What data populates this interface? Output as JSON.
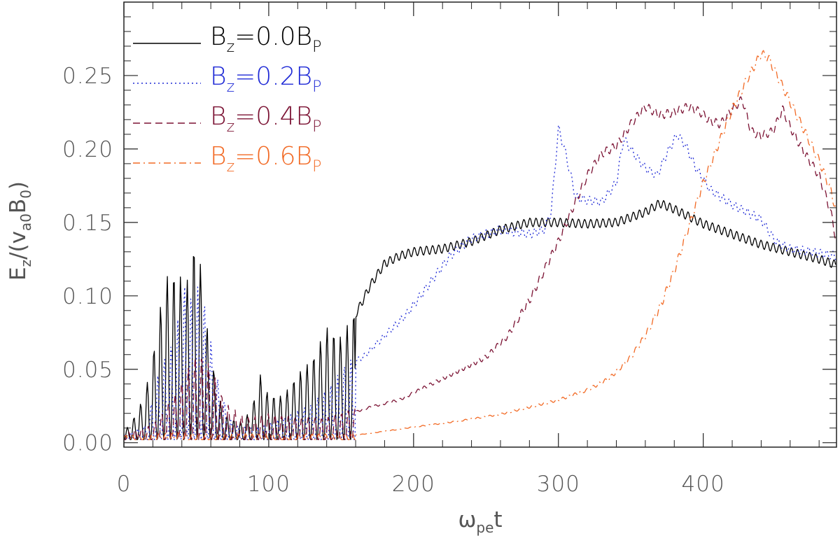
{
  "chart_data": {
    "type": "line",
    "xlabel": "ω_pe t",
    "ylabel": "E_z/(v_a0 B_0)",
    "xlim": [
      0,
      492
    ],
    "ylim": [
      -0.003,
      0.3
    ],
    "x_ticks": [
      0,
      100,
      200,
      300,
      400
    ],
    "x_tick_labels": [
      "0",
      "100",
      "200",
      "300",
      "400"
    ],
    "y_ticks": [
      0.0,
      0.05,
      0.1,
      0.15,
      0.2,
      0.25
    ],
    "y_tick_labels": [
      "0.00",
      "0.05",
      "0.10",
      "0.15",
      "0.20",
      "0.25"
    ],
    "legend_position": "top-left",
    "series": [
      {
        "name": "B_z=0.0B_P",
        "legend_main": "B",
        "legend_sub": "z",
        "legend_mid": "=0.0B",
        "legend_sub2": "P",
        "color": "#000000",
        "dash": "solid",
        "envelope": [
          [
            0,
            0.005
          ],
          [
            10,
            0.02
          ],
          [
            18,
            0.045
          ],
          [
            25,
            0.09
          ],
          [
            30,
            0.112
          ],
          [
            37,
            0.115
          ],
          [
            43,
            0.105
          ],
          [
            48,
            0.133
          ],
          [
            52,
            0.128
          ],
          [
            57,
            0.08
          ],
          [
            65,
            0.03
          ],
          [
            72,
            0.015
          ],
          [
            80,
            0.012
          ],
          [
            88,
            0.02
          ],
          [
            94,
            0.045
          ],
          [
            100,
            0.03
          ],
          [
            110,
            0.03
          ],
          [
            120,
            0.045
          ],
          [
            130,
            0.055
          ],
          [
            140,
            0.077
          ],
          [
            150,
            0.07
          ],
          [
            160,
            0.09
          ],
          [
            170,
            0.11
          ],
          [
            180,
            0.125
          ],
          [
            190,
            0.13
          ],
          [
            200,
            0.133
          ],
          [
            220,
            0.135
          ],
          [
            240,
            0.14
          ],
          [
            260,
            0.148
          ],
          [
            280,
            0.153
          ],
          [
            300,
            0.153
          ],
          [
            320,
            0.152
          ],
          [
            340,
            0.153
          ],
          [
            360,
            0.16
          ],
          [
            370,
            0.166
          ],
          [
            380,
            0.162
          ],
          [
            390,
            0.157
          ],
          [
            400,
            0.152
          ],
          [
            420,
            0.145
          ],
          [
            440,
            0.138
          ],
          [
            460,
            0.133
          ],
          [
            480,
            0.128
          ],
          [
            492,
            0.124
          ]
        ]
      },
      {
        "name": "B_z=0.2B_P",
        "legend_main": "B",
        "legend_sub": "z",
        "legend_mid": "=0.2B",
        "legend_sub2": "P",
        "color": "#1f2ad6",
        "dash": "dotted",
        "envelope": [
          [
            0,
            0.003
          ],
          [
            15,
            0.01
          ],
          [
            25,
            0.05
          ],
          [
            35,
            0.07
          ],
          [
            42,
            0.107
          ],
          [
            48,
            0.095
          ],
          [
            53,
            0.11
          ],
          [
            58,
            0.08
          ],
          [
            65,
            0.04
          ],
          [
            75,
            0.01
          ],
          [
            90,
            0.008
          ],
          [
            110,
            0.015
          ],
          [
            130,
            0.025
          ],
          [
            145,
            0.04
          ],
          [
            155,
            0.055
          ],
          [
            165,
            0.06
          ],
          [
            175,
            0.07
          ],
          [
            185,
            0.08
          ],
          [
            195,
            0.09
          ],
          [
            210,
            0.11
          ],
          [
            225,
            0.13
          ],
          [
            240,
            0.142
          ],
          [
            260,
            0.148
          ],
          [
            280,
            0.145
          ],
          [
            290,
            0.148
          ],
          [
            295,
            0.16
          ],
          [
            300,
            0.217
          ],
          [
            305,
            0.2
          ],
          [
            312,
            0.17
          ],
          [
            320,
            0.168
          ],
          [
            330,
            0.167
          ],
          [
            340,
            0.18
          ],
          [
            345,
            0.21
          ],
          [
            352,
            0.2
          ],
          [
            360,
            0.19
          ],
          [
            368,
            0.185
          ],
          [
            375,
            0.2
          ],
          [
            382,
            0.213
          ],
          [
            388,
            0.205
          ],
          [
            395,
            0.19
          ],
          [
            405,
            0.175
          ],
          [
            420,
            0.165
          ],
          [
            430,
            0.16
          ],
          [
            440,
            0.155
          ],
          [
            450,
            0.14
          ],
          [
            460,
            0.135
          ],
          [
            475,
            0.133
          ],
          [
            492,
            0.13
          ]
        ]
      },
      {
        "name": "B_z=0.4B_P",
        "legend_main": "B",
        "legend_sub": "z",
        "legend_mid": "=0.4B",
        "legend_sub2": "P",
        "color": "#7b1233",
        "dash": "dashed",
        "envelope": [
          [
            0,
            0.005
          ],
          [
            20,
            0.01
          ],
          [
            35,
            0.03
          ],
          [
            45,
            0.05
          ],
          [
            52,
            0.06
          ],
          [
            60,
            0.05
          ],
          [
            70,
            0.025
          ],
          [
            85,
            0.015
          ],
          [
            100,
            0.018
          ],
          [
            120,
            0.015
          ],
          [
            140,
            0.015
          ],
          [
            155,
            0.02
          ],
          [
            170,
            0.025
          ],
          [
            190,
            0.03
          ],
          [
            210,
            0.04
          ],
          [
            230,
            0.05
          ],
          [
            250,
            0.06
          ],
          [
            265,
            0.075
          ],
          [
            280,
            0.1
          ],
          [
            290,
            0.12
          ],
          [
            300,
            0.14
          ],
          [
            310,
            0.163
          ],
          [
            320,
            0.185
          ],
          [
            330,
            0.2
          ],
          [
            340,
            0.205
          ],
          [
            350,
            0.22
          ],
          [
            360,
            0.232
          ],
          [
            370,
            0.226
          ],
          [
            380,
            0.228
          ],
          [
            390,
            0.232
          ],
          [
            398,
            0.228
          ],
          [
            405,
            0.222
          ],
          [
            412,
            0.22
          ],
          [
            420,
            0.23
          ],
          [
            427,
            0.237
          ],
          [
            433,
            0.215
          ],
          [
            440,
            0.212
          ],
          [
            448,
            0.215
          ],
          [
            455,
            0.23
          ],
          [
            460,
            0.218
          ],
          [
            470,
            0.2
          ],
          [
            480,
            0.185
          ],
          [
            488,
            0.16
          ],
          [
            492,
            0.14
          ]
        ]
      },
      {
        "name": "B_z=0.6B_P",
        "legend_main": "B",
        "legend_sub": "z",
        "legend_mid": "=0.6B",
        "legend_sub2": "P",
        "color": "#f26a25",
        "dash": "dashdot",
        "envelope": [
          [
            0,
            0.003
          ],
          [
            40,
            0.005
          ],
          [
            80,
            0.004
          ],
          [
            120,
            0.004
          ],
          [
            150,
            0.004
          ],
          [
            180,
            0.008
          ],
          [
            200,
            0.011
          ],
          [
            230,
            0.015
          ],
          [
            260,
            0.02
          ],
          [
            280,
            0.025
          ],
          [
            300,
            0.03
          ],
          [
            320,
            0.037
          ],
          [
            335,
            0.045
          ],
          [
            350,
            0.06
          ],
          [
            360,
            0.075
          ],
          [
            370,
            0.095
          ],
          [
            380,
            0.12
          ],
          [
            390,
            0.15
          ],
          [
            400,
            0.18
          ],
          [
            410,
            0.205
          ],
          [
            420,
            0.23
          ],
          [
            430,
            0.25
          ],
          [
            440,
            0.268
          ],
          [
            445,
            0.265
          ],
          [
            450,
            0.255
          ],
          [
            460,
            0.235
          ],
          [
            470,
            0.215
          ],
          [
            480,
            0.195
          ],
          [
            488,
            0.175
          ],
          [
            492,
            0.16
          ]
        ]
      }
    ]
  }
}
